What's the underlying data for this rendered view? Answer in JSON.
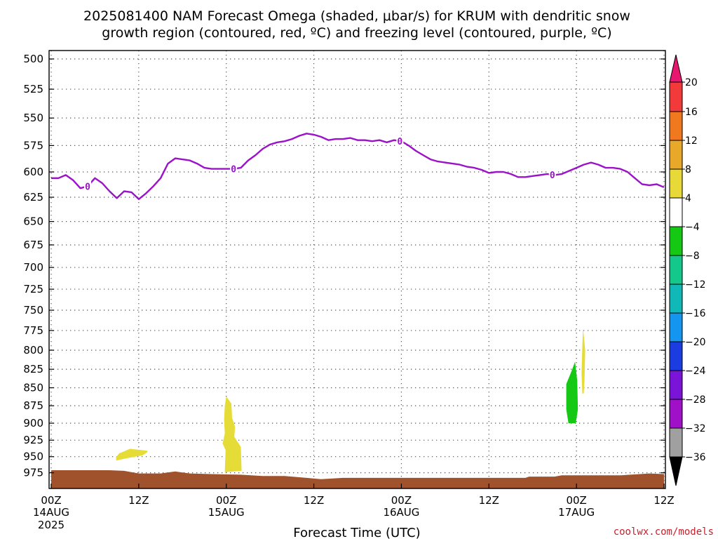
{
  "title": {
    "line1": "2025081400 NAM Forecast Omega (shaded, μbar/s) for KRUM with dendritic snow",
    "line2": "growth region (contoured, red, ºC) and freezing level (contoured, purple, ºC)"
  },
  "credit": "coolwx.com/models",
  "chart_data": {
    "type": "heatmap",
    "title": "2025081400 NAM Forecast Omega (shaded, μbar/s) for KRUM with dendritic snow growth region (contoured, red, ºC) and freezing level (contoured, purple, ºC)",
    "xlabel": "Forecast Time (UTC)",
    "ylabel": "",
    "x_ticks": [
      {
        "hour": 0,
        "label": "00Z",
        "sub": "14AUG",
        "sub2": "2025"
      },
      {
        "hour": 12,
        "label": "12Z",
        "sub": "",
        "sub2": ""
      },
      {
        "hour": 24,
        "label": "00Z",
        "sub": "15AUG",
        "sub2": ""
      },
      {
        "hour": 36,
        "label": "12Z",
        "sub": "",
        "sub2": ""
      },
      {
        "hour": 48,
        "label": "00Z",
        "sub": "16AUG",
        "sub2": ""
      },
      {
        "hour": 60,
        "label": "12Z",
        "sub": "",
        "sub2": ""
      },
      {
        "hour": 72,
        "label": "00Z",
        "sub": "17AUG",
        "sub2": ""
      },
      {
        "hour": 84,
        "label": "12Z",
        "sub": "",
        "sub2": ""
      }
    ],
    "xlim": [
      0,
      84
    ],
    "y_ticks": [
      "500",
      "525",
      "550",
      "575",
      "600",
      "625",
      "650",
      "675",
      "700",
      "725",
      "750",
      "775",
      "800",
      "825",
      "850",
      "875",
      "900",
      "925",
      "950",
      "975"
    ],
    "ylim": [
      1000,
      500
    ],
    "y_scale": "log",
    "grid": true,
    "colorbar": {
      "labels": [
        "20",
        "16",
        "12",
        "8",
        "4",
        "−4",
        "−8",
        "−12",
        "−16",
        "−20",
        "−24",
        "−28",
        "−32",
        "−36"
      ],
      "colors": [
        "#e8166e",
        "#f23a3a",
        "#f0781e",
        "#e8a82a",
        "#e8d838",
        "#ffffff",
        "#14c814",
        "#14c88c",
        "#10b8b8",
        "#1496f0",
        "#1a3ce0",
        "#7a14d8",
        "#a010c8",
        "#a0a0a0",
        "#000000"
      ]
    },
    "freezing_level": {
      "color": "#9b12c8",
      "label": "0",
      "label_hours": [
        5,
        25,
        47.8,
        68.7
      ],
      "points": [
        [
          0,
          606
        ],
        [
          1,
          606
        ],
        [
          2,
          603
        ],
        [
          3,
          608
        ],
        [
          4,
          616
        ],
        [
          5,
          614
        ],
        [
          6,
          606
        ],
        [
          7,
          611
        ],
        [
          8,
          619
        ],
        [
          9,
          626
        ],
        [
          10,
          619
        ],
        [
          11,
          620
        ],
        [
          12,
          627
        ],
        [
          13,
          621
        ],
        [
          14,
          614
        ],
        [
          15,
          606
        ],
        [
          16,
          592
        ],
        [
          17,
          587
        ],
        [
          18,
          588
        ],
        [
          19,
          589
        ],
        [
          20,
          592
        ],
        [
          21,
          596
        ],
        [
          22,
          597
        ],
        [
          23,
          597
        ],
        [
          24,
          597
        ],
        [
          25,
          597
        ],
        [
          26,
          596
        ],
        [
          27,
          589
        ],
        [
          28,
          584
        ],
        [
          29,
          578
        ],
        [
          30,
          574
        ],
        [
          31,
          572
        ],
        [
          32,
          571
        ],
        [
          33,
          569
        ],
        [
          34,
          566
        ],
        [
          35,
          564
        ],
        [
          36,
          565
        ],
        [
          37,
          567
        ],
        [
          38,
          570
        ],
        [
          39,
          569
        ],
        [
          40,
          569
        ],
        [
          41,
          568
        ],
        [
          42,
          570
        ],
        [
          43,
          570
        ],
        [
          44,
          571
        ],
        [
          45,
          570
        ],
        [
          46,
          572
        ],
        [
          47,
          570
        ],
        [
          48,
          571
        ],
        [
          49,
          575
        ],
        [
          50,
          580
        ],
        [
          51,
          584
        ],
        [
          52,
          588
        ],
        [
          53,
          590
        ],
        [
          54,
          591
        ],
        [
          55,
          592
        ],
        [
          56,
          593
        ],
        [
          57,
          595
        ],
        [
          58,
          596
        ],
        [
          59,
          598
        ],
        [
          60,
          601
        ],
        [
          61,
          600
        ],
        [
          62,
          600
        ],
        [
          63,
          602
        ],
        [
          64,
          605
        ],
        [
          65,
          605
        ],
        [
          66,
          604
        ],
        [
          67,
          603
        ],
        [
          68,
          602
        ],
        [
          69,
          603
        ],
        [
          70,
          602
        ],
        [
          71,
          599
        ],
        [
          72,
          596
        ],
        [
          73,
          593
        ],
        [
          74,
          591
        ],
        [
          75,
          593
        ],
        [
          76,
          596
        ],
        [
          77,
          596
        ],
        [
          78,
          597
        ],
        [
          79,
          600
        ],
        [
          80,
          606
        ],
        [
          81,
          612
        ],
        [
          82,
          613
        ],
        [
          83,
          612
        ],
        [
          84,
          615
        ]
      ]
    },
    "omega_regions": [
      {
        "value_range": "4 to 8",
        "color": "#e6dc38",
        "points": [
          [
            8.9,
            956
          ],
          [
            10.5,
            952
          ],
          [
            12.5,
            948
          ],
          [
            13.2,
            943
          ],
          [
            13.2,
            941
          ],
          [
            10.8,
            938
          ],
          [
            9.3,
            945
          ],
          [
            8.9,
            951
          ]
        ]
      },
      {
        "value_range": "4 to 8",
        "color": "#e6dc38",
        "points": [
          [
            24,
            862
          ],
          [
            24.7,
            872
          ],
          [
            24.8,
            892
          ],
          [
            25.2,
            905
          ],
          [
            25.1,
            920
          ],
          [
            26,
            935
          ],
          [
            26.1,
            972
          ],
          [
            23.8,
            974
          ],
          [
            23.9,
            940
          ],
          [
            23.5,
            930
          ],
          [
            23.8,
            915
          ],
          [
            23.7,
            895
          ],
          [
            23.8,
            875
          ]
        ]
      },
      {
        "value_range": "-4 to -8",
        "color": "#14c814",
        "points": [
          [
            71.8,
            815
          ],
          [
            72.1,
            840
          ],
          [
            72.2,
            880
          ],
          [
            71.9,
            900
          ],
          [
            70.9,
            900
          ],
          [
            70.6,
            880
          ],
          [
            70.6,
            845
          ],
          [
            71.3,
            828
          ]
        ]
      },
      {
        "value_range": "4 to 8",
        "color": "#e6dc38",
        "points": [
          [
            72.9,
            772
          ],
          [
            73.2,
            800
          ],
          [
            73.1,
            840
          ],
          [
            73.0,
            858
          ],
          [
            72.8,
            858
          ],
          [
            72.7,
            830
          ],
          [
            72.8,
            795
          ]
        ]
      }
    ],
    "terrain": {
      "color": "#a0522d",
      "surface": [
        [
          0,
          971
        ],
        [
          8,
          971
        ],
        [
          10,
          972
        ],
        [
          12,
          976
        ],
        [
          15,
          976
        ],
        [
          17,
          973
        ],
        [
          19,
          976
        ],
        [
          22,
          977
        ],
        [
          26,
          978
        ],
        [
          29,
          980
        ],
        [
          32,
          980
        ],
        [
          35,
          983
        ],
        [
          37,
          985
        ],
        [
          40,
          983
        ],
        [
          48,
          983
        ],
        [
          58,
          983
        ],
        [
          65,
          983
        ],
        [
          65.5,
          981
        ],
        [
          69,
          981
        ],
        [
          70,
          979
        ],
        [
          78,
          979
        ],
        [
          82,
          976
        ],
        [
          84,
          977
        ]
      ]
    }
  }
}
